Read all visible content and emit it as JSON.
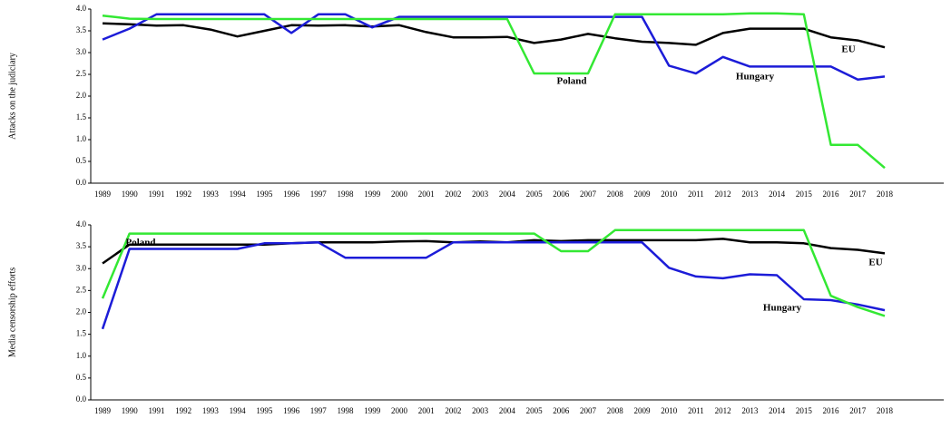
{
  "chart_data": [
    {
      "type": "line",
      "ylabel": "Attacks on the judiciary",
      "categories": [
        "1989",
        "1990",
        "1991",
        "1992",
        "1993",
        "1994",
        "1995",
        "1996",
        "1997",
        "1998",
        "1999",
        "2000",
        "2001",
        "2002",
        "2003",
        "2004",
        "2005",
        "2006",
        "2007",
        "2008",
        "2009",
        "2010",
        "2011",
        "2012",
        "2013",
        "2014",
        "2015",
        "2016",
        "2017",
        "2018"
      ],
      "ylim": [
        0,
        4
      ],
      "yticks": [
        {
          "value": 0,
          "label": "0.0"
        },
        {
          "value": 0.5,
          "label": "0.5"
        },
        {
          "value": 1,
          "label": "1.0"
        },
        {
          "value": 1.5,
          "label": "1.5"
        },
        {
          "value": 2,
          "label": "2.0"
        },
        {
          "value": 2.5,
          "label": "2.5"
        },
        {
          "value": 3,
          "label": "3.0"
        },
        {
          "value": 3.5,
          "label": "3.5"
        },
        {
          "value": 4,
          "label": "4.0"
        }
      ],
      "series": [
        {
          "name": "EU",
          "color": "#000000",
          "values": [
            3.67,
            3.65,
            3.62,
            3.63,
            3.53,
            3.37,
            3.5,
            3.63,
            3.62,
            3.63,
            3.6,
            3.63,
            3.47,
            3.35,
            3.35,
            3.36,
            3.22,
            3.3,
            3.43,
            3.33,
            3.25,
            3.22,
            3.18,
            3.45,
            3.55,
            3.55,
            3.55,
            3.35,
            3.28,
            3.12
          ]
        },
        {
          "name": "Hungary",
          "color": "#1c1cd8",
          "values": [
            3.3,
            3.55,
            3.88,
            3.88,
            3.88,
            3.88,
            3.88,
            3.45,
            3.88,
            3.88,
            3.58,
            3.82,
            3.82,
            3.82,
            3.82,
            3.82,
            3.82,
            3.82,
            3.82,
            3.82,
            3.82,
            2.7,
            2.52,
            2.9,
            2.68,
            2.68,
            2.68,
            2.68,
            2.38,
            2.45
          ]
        },
        {
          "name": "Poland",
          "color": "#33e833",
          "values": [
            3.85,
            3.78,
            3.77,
            3.77,
            3.77,
            3.77,
            3.77,
            3.77,
            3.77,
            3.77,
            3.77,
            3.77,
            3.77,
            3.77,
            3.77,
            3.77,
            2.52,
            2.52,
            2.52,
            3.88,
            3.88,
            3.88,
            3.88,
            3.88,
            3.9,
            3.9,
            3.88,
            0.88,
            0.88,
            0.35
          ]
        }
      ]
    },
    {
      "type": "line",
      "ylabel": "Media censorship efforts",
      "categories": [
        "1989",
        "1990",
        "1991",
        "1992",
        "1993",
        "1994",
        "1995",
        "1996",
        "1997",
        "1998",
        "1999",
        "2000",
        "2001",
        "2002",
        "2003",
        "2004",
        "2005",
        "2006",
        "2007",
        "2008",
        "2009",
        "2010",
        "2011",
        "2012",
        "2013",
        "2014",
        "2015",
        "2016",
        "2017",
        "2018"
      ],
      "ylim": [
        0,
        4
      ],
      "yticks": [
        {
          "value": 0,
          "label": "0.0"
        },
        {
          "value": 0.5,
          "label": "0.5"
        },
        {
          "value": 1,
          "label": "1.0"
        },
        {
          "value": 1.5,
          "label": "1.5"
        },
        {
          "value": 2,
          "label": "2.0"
        },
        {
          "value": 2.5,
          "label": "2.5"
        },
        {
          "value": 3,
          "label": "3.0"
        },
        {
          "value": 3.5,
          "label": "3.5"
        },
        {
          "value": 4,
          "label": "4.0"
        }
      ],
      "series": [
        {
          "name": "EU",
          "color": "#000000",
          "values": [
            3.12,
            3.55,
            3.55,
            3.55,
            3.55,
            3.55,
            3.55,
            3.58,
            3.6,
            3.6,
            3.6,
            3.62,
            3.63,
            3.6,
            3.62,
            3.6,
            3.65,
            3.63,
            3.65,
            3.65,
            3.65,
            3.65,
            3.65,
            3.68,
            3.6,
            3.6,
            3.58,
            3.47,
            3.43,
            3.35
          ]
        },
        {
          "name": "Hungary",
          "color": "#1c1cd8",
          "values": [
            1.62,
            3.45,
            3.45,
            3.45,
            3.45,
            3.45,
            3.58,
            3.58,
            3.6,
            3.25,
            3.25,
            3.25,
            3.25,
            3.6,
            3.6,
            3.6,
            3.6,
            3.6,
            3.6,
            3.6,
            3.6,
            3.02,
            2.82,
            2.78,
            2.87,
            2.85,
            2.3,
            2.28,
            2.18,
            2.05
          ]
        },
        {
          "name": "Poland",
          "color": "#33e833",
          "values": [
            2.32,
            3.8,
            3.8,
            3.8,
            3.8,
            3.8,
            3.8,
            3.8,
            3.8,
            3.8,
            3.8,
            3.8,
            3.8,
            3.8,
            3.8,
            3.8,
            3.8,
            3.4,
            3.4,
            3.88,
            3.88,
            3.88,
            3.88,
            3.88,
            3.88,
            3.88,
            3.88,
            2.38,
            2.12,
            1.92
          ]
        }
      ]
    }
  ]
}
